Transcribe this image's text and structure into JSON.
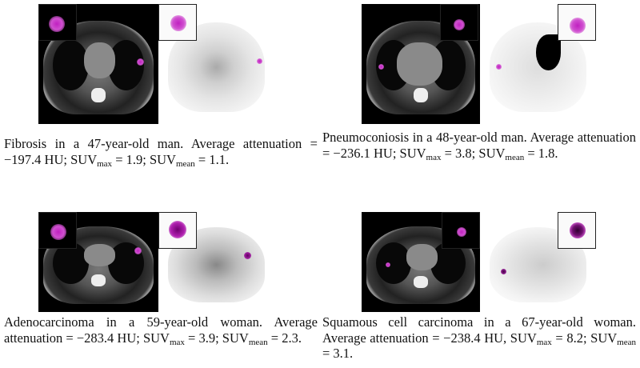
{
  "colors": {
    "lesion": "#c020c0",
    "ct_background": "#000000",
    "pet_background": "#ffffff"
  },
  "panels": [
    {
      "caption": {
        "p1": "Fibrosis in a 47-year-old man. Average attenuation = −197.4 HU; SUV",
        "s1": "max",
        "p2": " = 1.9; SUV",
        "s2": "mean",
        "p3": " = 1.1."
      }
    },
    {
      "caption": {
        "p1": "Pneumoconiosis in a 48-year-old man.  Average attenuation = −236.1 HU; SUV",
        "s1": "max",
        "p2": " = 3.8; SUV",
        "s2": "mean",
        "p3": " = 1.8."
      }
    },
    {
      "caption": {
        "p1": "Adenocarcinoma in a 59-year-old woman. Average attenuation = −283.4 HU; SUV",
        "s1": "max",
        "p2": " = 3.9; SUV",
        "s2": "mean",
        "p3": " = 2.3."
      }
    },
    {
      "caption": {
        "p1": "Squamous cell carcinoma in a 67-year-old woman. Average attenuation = −238.4 HU, SUV",
        "s1": "max",
        "p2": " = 8.2; SUV",
        "s2": "mean",
        "p3": " = 3.1."
      }
    }
  ]
}
